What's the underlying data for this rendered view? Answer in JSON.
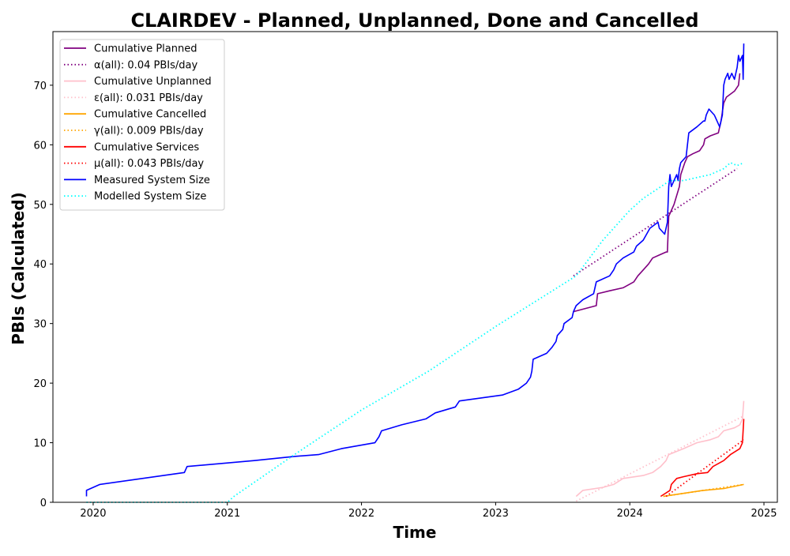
{
  "chart_data": {
    "type": "line",
    "title": "CLAIRDEV - Planned, Unplanned, Done  and Cancelled",
    "xlabel": "Time",
    "ylabel": "PBIs (Calculated)",
    "xlim": [
      2019.7,
      2025.1
    ],
    "ylim": [
      0,
      79
    ],
    "xticks": [
      2020,
      2021,
      2022,
      2023,
      2024,
      2025
    ],
    "xtick_labels": [
      "2020",
      "2021",
      "2022",
      "2023",
      "2024",
      "2025"
    ],
    "yticks": [
      0,
      10,
      20,
      30,
      40,
      50,
      60,
      70
    ],
    "ytick_labels": [
      "0",
      "10",
      "20",
      "30",
      "40",
      "50",
      "60",
      "70"
    ],
    "legend_position": "top-left",
    "series": [
      {
        "name": "Cumulative Planned",
        "color": "#800080",
        "style": "solid",
        "points": [
          [
            2023.58,
            32
          ],
          [
            2023.75,
            33
          ],
          [
            2023.76,
            35
          ],
          [
            2023.85,
            35.5
          ],
          [
            2023.95,
            36
          ],
          [
            2024.03,
            37
          ],
          [
            2024.06,
            38
          ],
          [
            2024.1,
            39
          ],
          [
            2024.14,
            40
          ],
          [
            2024.17,
            41
          ],
          [
            2024.22,
            41.5
          ],
          [
            2024.27,
            42
          ],
          [
            2024.28,
            42
          ],
          [
            2024.29,
            48
          ],
          [
            2024.33,
            50
          ],
          [
            2024.37,
            53
          ],
          [
            2024.38,
            55
          ],
          [
            2024.41,
            57
          ],
          [
            2024.43,
            58
          ],
          [
            2024.47,
            58.5
          ],
          [
            2024.52,
            59
          ],
          [
            2024.55,
            60
          ],
          [
            2024.56,
            61
          ],
          [
            2024.6,
            61.5
          ],
          [
            2024.66,
            62
          ],
          [
            2024.68,
            64
          ],
          [
            2024.7,
            67
          ],
          [
            2024.72,
            68
          ],
          [
            2024.78,
            69
          ],
          [
            2024.81,
            70
          ],
          [
            2024.82,
            72
          ]
        ]
      },
      {
        "name": "α(all): 0.04 PBIs/day",
        "color": "#800080",
        "style": "dotted",
        "points": [
          [
            2023.58,
            38
          ],
          [
            2024.8,
            56
          ]
        ]
      },
      {
        "name": "Cumulative Unplanned",
        "color": "#ffc0cb",
        "style": "solid",
        "points": [
          [
            2023.6,
            1
          ],
          [
            2023.65,
            2
          ],
          [
            2023.8,
            2.5
          ],
          [
            2023.88,
            3
          ],
          [
            2023.95,
            4
          ],
          [
            2024.1,
            4.5
          ],
          [
            2024.17,
            5
          ],
          [
            2024.23,
            6
          ],
          [
            2024.27,
            7
          ],
          [
            2024.29,
            8
          ],
          [
            2024.4,
            9
          ],
          [
            2024.5,
            10
          ],
          [
            2024.6,
            10.5
          ],
          [
            2024.66,
            11
          ],
          [
            2024.7,
            12
          ],
          [
            2024.78,
            12.5
          ],
          [
            2024.82,
            13
          ],
          [
            2024.84,
            14
          ],
          [
            2024.85,
            17
          ]
        ]
      },
      {
        "name": "ε(all): 0.031 PBIs/day",
        "color": "#ffc0cb",
        "style": "dotted",
        "points": [
          [
            2023.6,
            0.2
          ],
          [
            2024.85,
            14.5
          ]
        ]
      },
      {
        "name": "Cumulative Cancelled",
        "color": "#ffa500",
        "style": "solid",
        "points": [
          [
            2024.25,
            1
          ],
          [
            2024.4,
            1.5
          ],
          [
            2024.55,
            2
          ],
          [
            2024.7,
            2.3
          ],
          [
            2024.85,
            3
          ]
        ]
      },
      {
        "name": "γ(all): 0.009 PBIs/day",
        "color": "#ffa500",
        "style": "dotted",
        "points": [
          [
            2024.25,
            1
          ],
          [
            2024.85,
            3
          ]
        ]
      },
      {
        "name": "Cumulative Services",
        "color": "#ff0000",
        "style": "solid",
        "points": [
          [
            2024.23,
            1
          ],
          [
            2024.3,
            2
          ],
          [
            2024.31,
            3
          ],
          [
            2024.35,
            4
          ],
          [
            2024.4,
            4.3
          ],
          [
            2024.5,
            4.8
          ],
          [
            2024.58,
            5
          ],
          [
            2024.62,
            6
          ],
          [
            2024.7,
            7
          ],
          [
            2024.75,
            8
          ],
          [
            2024.82,
            9
          ],
          [
            2024.84,
            10
          ],
          [
            2024.85,
            14
          ]
        ]
      },
      {
        "name": "μ(all): 0.043 PBIs/day",
        "color": "#ff0000",
        "style": "dotted",
        "points": [
          [
            2024.27,
            1
          ],
          [
            2024.85,
            10.5
          ]
        ]
      },
      {
        "name": "Measured System Size",
        "color": "#0000ff",
        "style": "solid",
        "points": [
          [
            2019.95,
            1
          ],
          [
            2019.95,
            2
          ],
          [
            2020.05,
            3
          ],
          [
            2020.68,
            5
          ],
          [
            2020.7,
            6
          ],
          [
            2021.2,
            7
          ],
          [
            2021.5,
            7.7
          ],
          [
            2021.68,
            8
          ],
          [
            2021.85,
            9
          ],
          [
            2022.1,
            10
          ],
          [
            2022.13,
            11
          ],
          [
            2022.15,
            12
          ],
          [
            2022.3,
            13
          ],
          [
            2022.48,
            14
          ],
          [
            2022.55,
            15
          ],
          [
            2022.7,
            16
          ],
          [
            2022.73,
            17
          ],
          [
            2023.05,
            18
          ],
          [
            2023.17,
            19
          ],
          [
            2023.23,
            20
          ],
          [
            2023.26,
            21
          ],
          [
            2023.27,
            22
          ],
          [
            2023.28,
            24
          ],
          [
            2023.38,
            25
          ],
          [
            2023.42,
            26
          ],
          [
            2023.45,
            27
          ],
          [
            2023.46,
            28
          ],
          [
            2023.5,
            29
          ],
          [
            2023.51,
            30
          ],
          [
            2023.57,
            31
          ],
          [
            2023.58,
            32
          ],
          [
            2023.6,
            33
          ],
          [
            2023.65,
            34
          ],
          [
            2023.73,
            35
          ],
          [
            2023.75,
            37
          ],
          [
            2023.85,
            38
          ],
          [
            2023.88,
            39
          ],
          [
            2023.9,
            40
          ],
          [
            2023.95,
            41
          ],
          [
            2024.03,
            42
          ],
          [
            2024.05,
            43
          ],
          [
            2024.1,
            44
          ],
          [
            2024.15,
            46
          ],
          [
            2024.21,
            47
          ],
          [
            2024.22,
            46
          ],
          [
            2024.26,
            45
          ],
          [
            2024.28,
            47
          ],
          [
            2024.29,
            53
          ],
          [
            2024.3,
            55
          ],
          [
            2024.31,
            53
          ],
          [
            2024.33,
            54
          ],
          [
            2024.35,
            55
          ],
          [
            2024.36,
            54
          ],
          [
            2024.37,
            56
          ],
          [
            2024.38,
            57
          ],
          [
            2024.42,
            58
          ],
          [
            2024.43,
            60
          ],
          [
            2024.44,
            62
          ],
          [
            2024.5,
            63
          ],
          [
            2024.55,
            64
          ],
          [
            2024.56,
            64
          ],
          [
            2024.57,
            65
          ],
          [
            2024.59,
            66
          ],
          [
            2024.63,
            65
          ],
          [
            2024.67,
            63
          ],
          [
            2024.68,
            64
          ],
          [
            2024.69,
            65
          ],
          [
            2024.7,
            70
          ],
          [
            2024.71,
            71
          ],
          [
            2024.73,
            72
          ],
          [
            2024.74,
            71
          ],
          [
            2024.76,
            72
          ],
          [
            2024.78,
            71
          ],
          [
            2024.8,
            73
          ],
          [
            2024.81,
            75
          ],
          [
            2024.82,
            74
          ],
          [
            2024.84,
            75
          ],
          [
            2024.845,
            71
          ],
          [
            2024.85,
            77
          ]
        ]
      },
      {
        "name": "Modelled System Size",
        "color": "#00ffff",
        "style": "dotted",
        "points": [
          [
            2019.95,
            0
          ],
          [
            2021.0,
            0
          ],
          [
            2021.05,
            1
          ],
          [
            2021.5,
            8
          ],
          [
            2022.0,
            15.5
          ],
          [
            2022.5,
            22
          ],
          [
            2023.0,
            29.5
          ],
          [
            2023.6,
            38
          ],
          [
            2023.7,
            41
          ],
          [
            2023.8,
            44
          ],
          [
            2023.9,
            46.5
          ],
          [
            2024.0,
            49
          ],
          [
            2024.1,
            51
          ],
          [
            2024.2,
            52.5
          ],
          [
            2024.3,
            54
          ],
          [
            2024.4,
            54
          ],
          [
            2024.5,
            54.5
          ],
          [
            2024.6,
            55
          ],
          [
            2024.7,
            56
          ],
          [
            2024.75,
            57
          ],
          [
            2024.8,
            56.5
          ],
          [
            2024.85,
            57
          ]
        ]
      }
    ]
  }
}
